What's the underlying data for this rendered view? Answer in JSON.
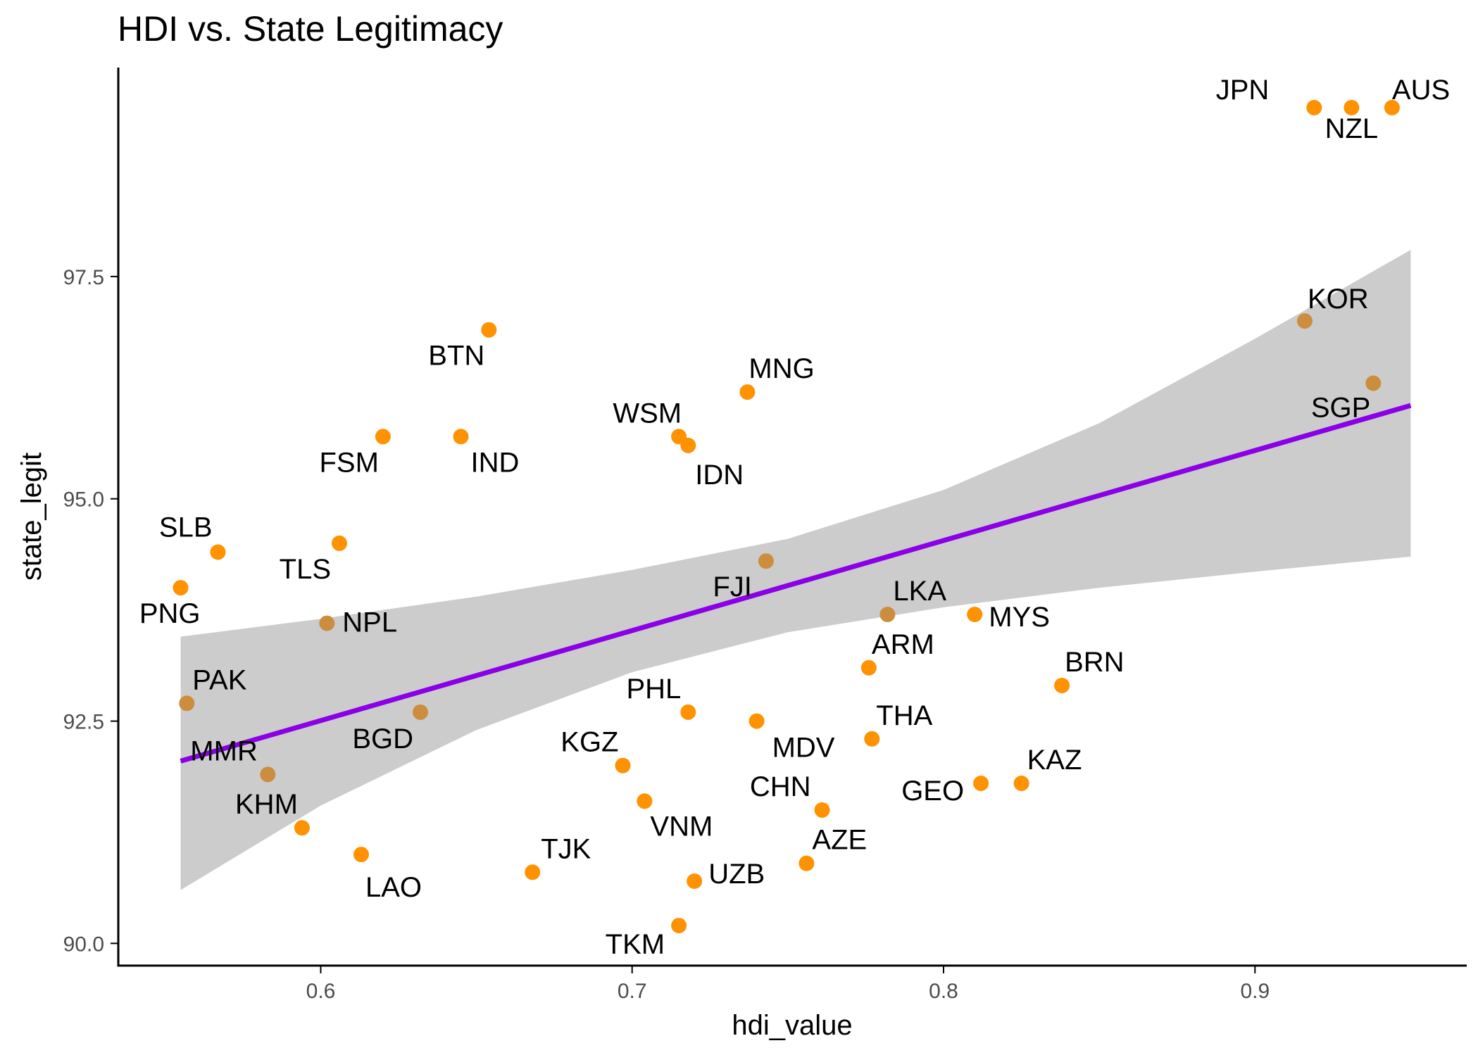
{
  "chart_data": {
    "type": "scatter",
    "title": "HDI vs. State Legitimacy",
    "xlabel": "hdi_value",
    "ylabel": "state_legit",
    "xlim": [
      0.535,
      0.968
    ],
    "ylim": [
      89.75,
      99.85
    ],
    "xticks": [
      0.6,
      0.7,
      0.8,
      0.9
    ],
    "xtick_labels": [
      "0.6",
      "0.7",
      "0.8",
      "0.9"
    ],
    "yticks": [
      90.0,
      92.5,
      95.0,
      97.5
    ],
    "ytick_labels": [
      "90.0",
      "92.5",
      "95.0",
      "97.5"
    ],
    "grid": false,
    "point_color": "#FF9200",
    "overlap_color": "#CC8D3E",
    "fit_color": "#8B00E6",
    "band_color": "#CCCCCC",
    "points": [
      {
        "label": "JPN",
        "x": 0.919,
        "y": 99.4
      },
      {
        "label": "NZL",
        "x": 0.931,
        "y": 99.4
      },
      {
        "label": "AUS",
        "x": 0.944,
        "y": 99.4
      },
      {
        "label": "KOR",
        "x": 0.916,
        "y": 97.0
      },
      {
        "label": "SGP",
        "x": 0.938,
        "y": 96.3
      },
      {
        "label": "BTN",
        "x": 0.654,
        "y": 96.9
      },
      {
        "label": "MNG",
        "x": 0.737,
        "y": 96.2
      },
      {
        "label": "WSM",
        "x": 0.715,
        "y": 95.7
      },
      {
        "label": "IDN",
        "x": 0.718,
        "y": 95.6
      },
      {
        "label": "FSM",
        "x": 0.62,
        "y": 95.7
      },
      {
        "label": "IND",
        "x": 0.645,
        "y": 95.7
      },
      {
        "label": "SLB",
        "x": 0.567,
        "y": 94.4
      },
      {
        "label": "TLS",
        "x": 0.606,
        "y": 94.5
      },
      {
        "label": "PNG",
        "x": 0.555,
        "y": 94.0
      },
      {
        "label": "NPL",
        "x": 0.602,
        "y": 93.6
      },
      {
        "label": "FJI",
        "x": 0.743,
        "y": 94.3
      },
      {
        "label": "LKA",
        "x": 0.782,
        "y": 93.7
      },
      {
        "label": "MYS",
        "x": 0.81,
        "y": 93.7
      },
      {
        "label": "ARM",
        "x": 0.776,
        "y": 93.1
      },
      {
        "label": "BRN",
        "x": 0.838,
        "y": 92.9
      },
      {
        "label": "PAK",
        "x": 0.557,
        "y": 92.7
      },
      {
        "label": "BGD",
        "x": 0.632,
        "y": 92.6
      },
      {
        "label": "PHL",
        "x": 0.718,
        "y": 92.6
      },
      {
        "label": "MDV",
        "x": 0.74,
        "y": 92.5
      },
      {
        "label": "THA",
        "x": 0.777,
        "y": 92.3
      },
      {
        "label": "MMR",
        "x": 0.583,
        "y": 91.9
      },
      {
        "label": "KGZ",
        "x": 0.697,
        "y": 92.0
      },
      {
        "label": "KAZ",
        "x": 0.825,
        "y": 91.8
      },
      {
        "label": "GEO",
        "x": 0.812,
        "y": 91.8
      },
      {
        "label": "CHN",
        "x": 0.761,
        "y": 91.5
      },
      {
        "label": "KHM",
        "x": 0.594,
        "y": 91.3
      },
      {
        "label": "VNM",
        "x": 0.704,
        "y": 91.6
      },
      {
        "label": "AZE",
        "x": 0.756,
        "y": 90.9
      },
      {
        "label": "LAO",
        "x": 0.613,
        "y": 91.0
      },
      {
        "label": "TJK",
        "x": 0.668,
        "y": 90.8
      },
      {
        "label": "UZB",
        "x": 0.72,
        "y": 90.7
      },
      {
        "label": "TKM",
        "x": 0.715,
        "y": 90.2
      }
    ],
    "fit": {
      "x_start": 0.555,
      "x_end": 0.95,
      "y_start": 92.05,
      "y_end": 96.05
    },
    "band": [
      {
        "x": 0.555,
        "lower": 90.6,
        "upper": 93.45
      },
      {
        "x": 0.6,
        "lower": 91.55,
        "upper": 93.65
      },
      {
        "x": 0.65,
        "lower": 92.4,
        "upper": 93.9
      },
      {
        "x": 0.7,
        "lower": 93.05,
        "upper": 94.2
      },
      {
        "x": 0.75,
        "lower": 93.5,
        "upper": 94.55
      },
      {
        "x": 0.8,
        "lower": 93.78,
        "upper": 95.1
      },
      {
        "x": 0.85,
        "lower": 94.0,
        "upper": 95.85
      },
      {
        "x": 0.9,
        "lower": 94.18,
        "upper": 96.8
      },
      {
        "x": 0.95,
        "lower": 94.35,
        "upper": 97.8
      }
    ]
  }
}
